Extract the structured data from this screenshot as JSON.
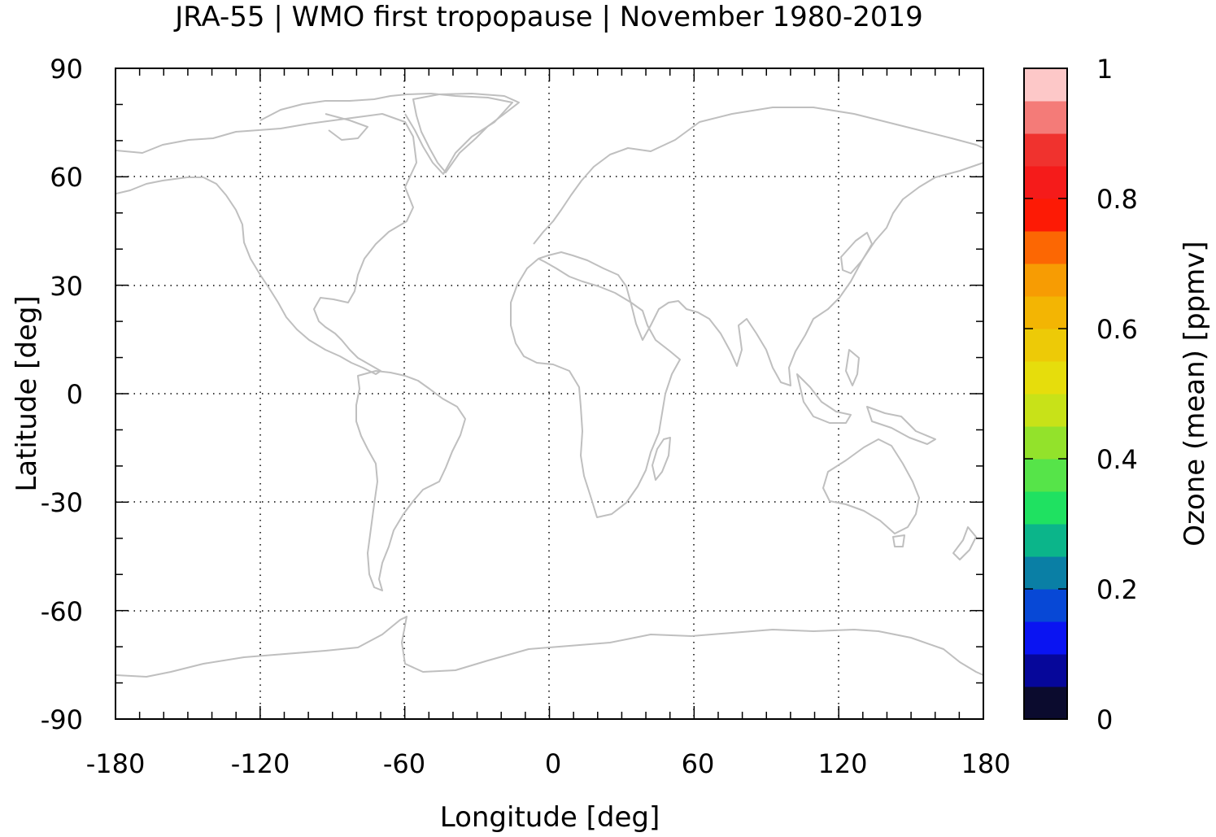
{
  "title": "JRA-55 | WMO first tropopause | November 1980-2019",
  "xaxis": {
    "label": "Longitude [deg]",
    "range": [
      -180,
      180
    ],
    "ticks": [
      "-180",
      "-120",
      "-60",
      "0",
      "60",
      "120",
      "180"
    ]
  },
  "yaxis": {
    "label": "Latitude [deg]",
    "range": [
      -90,
      90
    ],
    "ticks": [
      "90",
      "60",
      "30",
      "0",
      "-30",
      "-60",
      "-90"
    ]
  },
  "colorbar": {
    "label": "Ozone (mean) [ppmv]",
    "range": [
      0,
      1
    ],
    "ticks": [
      "0",
      "0.2",
      "0.4",
      "0.6",
      "0.8",
      "1"
    ],
    "colors": [
      "#0b0b2e",
      "#06079a",
      "#0a14f2",
      "#0748d6",
      "#0a7fa5",
      "#0bb58a",
      "#1fe161",
      "#56e449",
      "#93e22b",
      "#c8e218",
      "#e6dd0c",
      "#edca07",
      "#f3b503",
      "#f79c03",
      "#fc6703",
      "#fd1a05",
      "#f51b1a",
      "#f0322e",
      "#f47b78",
      "#fdc8c8"
    ]
  },
  "map": {
    "grid": "dotted",
    "coastline_color": "#bfbfbf",
    "data_values_present": false
  }
}
